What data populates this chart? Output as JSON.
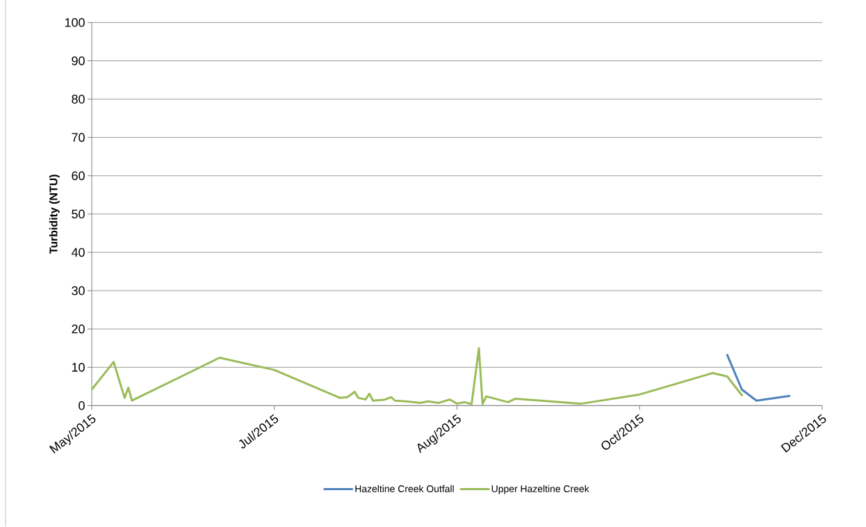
{
  "chart_data": {
    "type": "line",
    "ylabel": "Turbidity (NTU)",
    "xlim": [
      "2015-05-15",
      "2015-12-01"
    ],
    "xticks": [
      {
        "value": "2015-05-15",
        "label": "May/2015"
      },
      {
        "value": "2015-07-04",
        "label": "Jul/2015"
      },
      {
        "value": "2015-08-23",
        "label": "Aug/2015"
      },
      {
        "value": "2015-10-12",
        "label": "Oct/2015"
      },
      {
        "value": "2015-12-01",
        "label": "Dec/2015"
      }
    ],
    "ylim": [
      0,
      100
    ],
    "yticks": [
      0,
      10,
      20,
      30,
      40,
      50,
      60,
      70,
      80,
      90,
      100
    ],
    "grid": "y",
    "legend": "bottom",
    "marker": "none",
    "line_style": "solid",
    "series": [
      {
        "name": "Hazeltine Creek Outfall",
        "color": "#4f81bd",
        "x": [
          "2015-11-05",
          "2015-11-09",
          "2015-11-13",
          "2015-11-22"
        ],
        "values": [
          13.2,
          4.2,
          1.3,
          2.5
        ]
      },
      {
        "name": "Upper Hazeltine Creek",
        "color": "#9bbb59",
        "x": [
          "2015-05-15",
          "2015-05-21",
          "2015-05-24",
          "2015-05-25",
          "2015-05-26",
          "2015-06-19",
          "2015-07-04",
          "2015-07-22",
          "2015-07-24",
          "2015-07-26",
          "2015-07-27",
          "2015-07-29",
          "2015-07-30",
          "2015-07-31",
          "2015-08-03",
          "2015-08-05",
          "2015-08-06",
          "2015-08-09",
          "2015-08-13",
          "2015-08-15",
          "2015-08-18",
          "2015-08-21",
          "2015-08-23",
          "2015-08-25",
          "2015-08-27",
          "2015-08-29",
          "2015-08-30",
          "2015-08-31",
          "2015-09-06",
          "2015-09-08",
          "2015-09-26",
          "2015-10-12",
          "2015-11-01",
          "2015-11-05",
          "2015-11-09"
        ],
        "values": [
          4.2,
          11.4,
          2.0,
          4.7,
          1.3,
          12.5,
          9.3,
          2.0,
          2.2,
          3.6,
          2.0,
          1.6,
          3.1,
          1.3,
          1.5,
          2.2,
          1.3,
          1.1,
          0.7,
          1.1,
          0.7,
          1.6,
          0.5,
          0.9,
          0.4,
          15,
          0.4,
          2.4,
          0.9,
          1.8,
          0.5,
          2.9,
          8.5,
          7.6,
          2.7
        ]
      }
    ]
  }
}
